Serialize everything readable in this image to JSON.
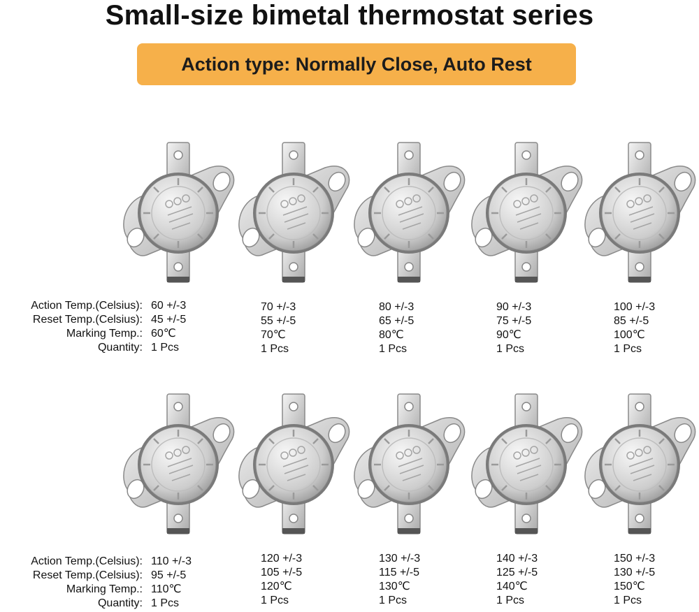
{
  "title": "Small-size bimetal thermostat series",
  "banner": "Action type: Normally Close, Auto Rest",
  "labels": {
    "action": "Action Temp.(Celsius):",
    "reset": "Reset  Temp.(Celsius):",
    "marking": "Marking Temp.:",
    "quantity": "Quantity:"
  },
  "products": [
    {
      "action": "60 +/-3",
      "reset": "45 +/-5",
      "marking": "60℃",
      "quantity": "1 Pcs"
    },
    {
      "action": "70 +/-3",
      "reset": "55 +/-5",
      "marking": "70℃",
      "quantity": "1 Pcs"
    },
    {
      "action": "80 +/-3",
      "reset": "65 +/-5",
      "marking": "80℃",
      "quantity": "1 Pcs"
    },
    {
      "action": "90 +/-3",
      "reset": "75 +/-5",
      "marking": "90℃",
      "quantity": "1 Pcs"
    },
    {
      "action": "100 +/-3",
      "reset": "85 +/-5",
      "marking": "100℃",
      "quantity": "1 Pcs"
    },
    {
      "action": "110 +/-3",
      "reset": "95 +/-5",
      "marking": "110℃",
      "quantity": "1 Pcs"
    },
    {
      "action": "120 +/-3",
      "reset": "105 +/-5",
      "marking": "120℃",
      "quantity": "1 Pcs"
    },
    {
      "action": "130 +/-3",
      "reset": "115 +/-5",
      "marking": "130℃",
      "quantity": "1 Pcs"
    },
    {
      "action": "140 +/-3",
      "reset": "125 +/-5",
      "marking": "140℃",
      "quantity": "1 Pcs"
    },
    {
      "action": "150 +/-3",
      "reset": "130 +/-5",
      "marking": "150℃",
      "quantity": "1 Pcs"
    }
  ]
}
